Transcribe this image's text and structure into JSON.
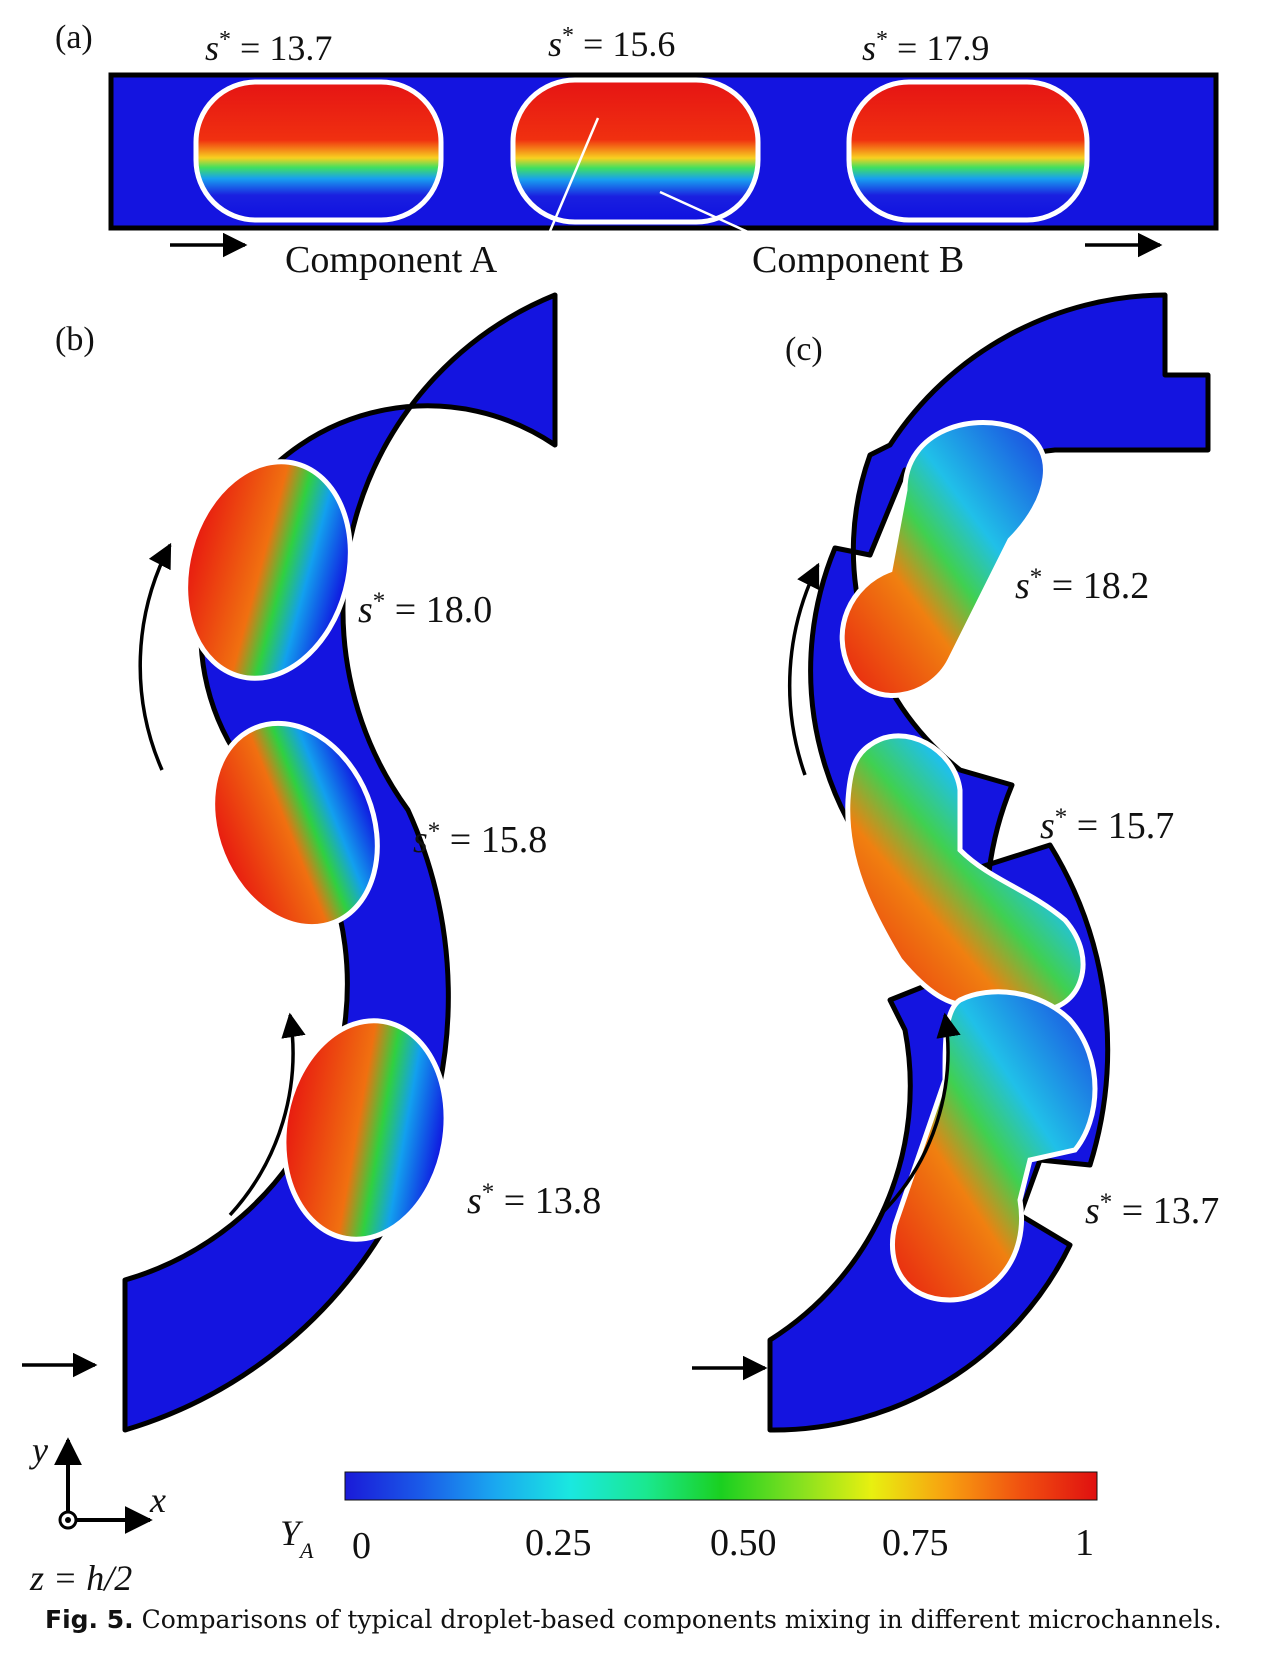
{
  "panels": {
    "a": {
      "tag": "(a)",
      "droplets": [
        {
          "label": "s* = 13.7",
          "sym": "s",
          "sup": "*",
          "eq": " = 13.7"
        },
        {
          "label": "s* = 15.6",
          "sym": "s",
          "sup": "*",
          "eq": " = 15.6"
        },
        {
          "label": "s* = 17.9",
          "sym": "s",
          "sup": "*",
          "eq": " = 17.9"
        }
      ],
      "component_a": "Component A",
      "component_b": "Component B"
    },
    "b": {
      "tag": "(b)",
      "droplets": [
        {
          "sym": "s",
          "sup": "*",
          "eq": " = 18.0"
        },
        {
          "sym": "s",
          "sup": "*",
          "eq": " = 15.8"
        },
        {
          "sym": "s",
          "sup": "*",
          "eq": " = 13.8"
        }
      ]
    },
    "c": {
      "tag": "(c)",
      "droplets": [
        {
          "sym": "s",
          "sup": "*",
          "eq": " = 18.2"
        },
        {
          "sym": "s",
          "sup": "*",
          "eq": " = 15.7"
        },
        {
          "sym": "s",
          "sup": "*",
          "eq": " = 13.7"
        }
      ]
    }
  },
  "axes": {
    "x": "x",
    "y": "y",
    "plane": "z = h/2"
  },
  "colorbar": {
    "variable": "Y",
    "subscript": "A",
    "ticks": [
      "0",
      "0.25",
      "0.50",
      "0.75",
      "1"
    ],
    "stops": [
      "#1a1ad8",
      "#1a5ae8",
      "#1aa8f0",
      "#1ae8e0",
      "#1ae890",
      "#1ad020",
      "#80e020",
      "#e8f010",
      "#f8a010",
      "#f05010",
      "#e01010"
    ]
  },
  "caption": {
    "label": "Fig. 5.",
    "text": "Comparisons of typical droplet-based components mixing in different microchannels."
  }
}
